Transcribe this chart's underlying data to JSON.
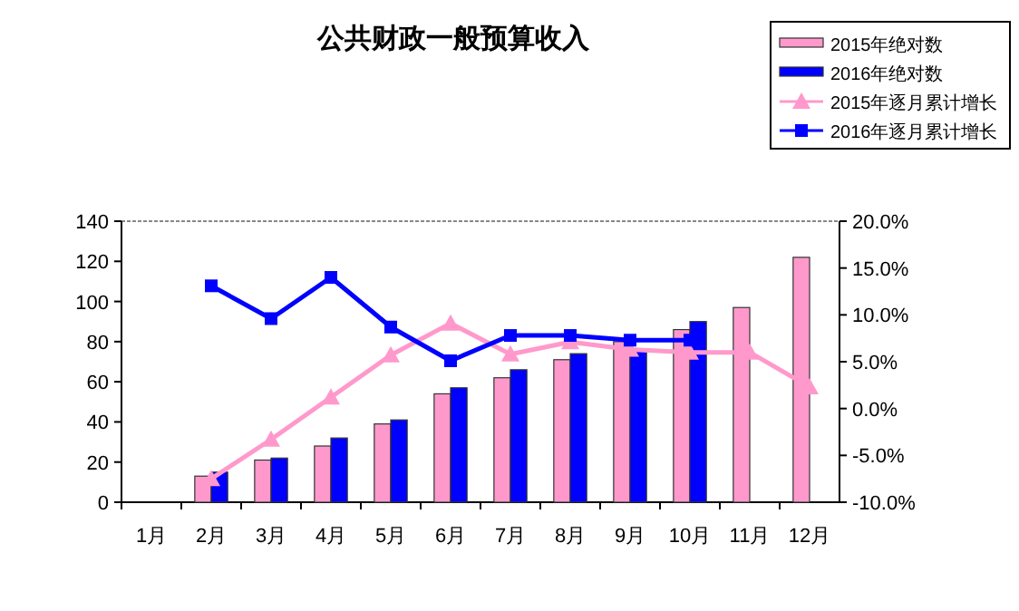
{
  "chart_data": {
    "type": "bar",
    "title": "公共财政一般预算收入",
    "categories": [
      "1月",
      "2月",
      "3月",
      "4月",
      "5月",
      "6月",
      "7月",
      "8月",
      "9月",
      "10月",
      "11月",
      "12月"
    ],
    "ylim": [
      0,
      140
    ],
    "yticks": [
      0,
      20,
      40,
      60,
      80,
      100,
      120,
      140
    ],
    "y2lim": [
      -10,
      20
    ],
    "y2ticks": [
      {
        "value": -10,
        "label": "-10.0%"
      },
      {
        "value": -5,
        "label": "-5.0%"
      },
      {
        "value": 0,
        "label": "0.0%"
      },
      {
        "value": 5,
        "label": "5.0%"
      },
      {
        "value": 10,
        "label": "10.0%"
      },
      {
        "value": 15,
        "label": "15.0%"
      },
      {
        "value": 20,
        "label": "20.0%"
      }
    ],
    "legend": "top right",
    "grid": false,
    "series": [
      {
        "name": "2015年绝对数",
        "color": "#ff99cc",
        "values": [
          null,
          13,
          21,
          28,
          39,
          54,
          62,
          71,
          80,
          86,
          97,
          122
        ]
      },
      {
        "name": "2016年绝对数",
        "color": "#0000ff",
        "values": [
          null,
          15,
          22,
          32,
          41,
          57,
          66,
          74,
          76,
          90,
          null,
          null
        ]
      },
      {
        "name": "2015年逐月累计增长",
        "type": "line",
        "axis": "y2",
        "marker": "triangle",
        "color": "#ff99cc",
        "values": [
          null,
          -7.5,
          -3.3,
          1.2,
          5.7,
          9.1,
          5.8,
          7.1,
          6.3,
          6.0,
          6.0,
          2.3
        ]
      },
      {
        "name": "2016年逐月累计增长",
        "type": "line",
        "axis": "y2",
        "marker": "square",
        "color": "#0000ff",
        "values": [
          null,
          13.1,
          9.6,
          14.0,
          8.7,
          5.1,
          7.8,
          7.8,
          7.3,
          7.3,
          null,
          null
        ]
      }
    ]
  }
}
